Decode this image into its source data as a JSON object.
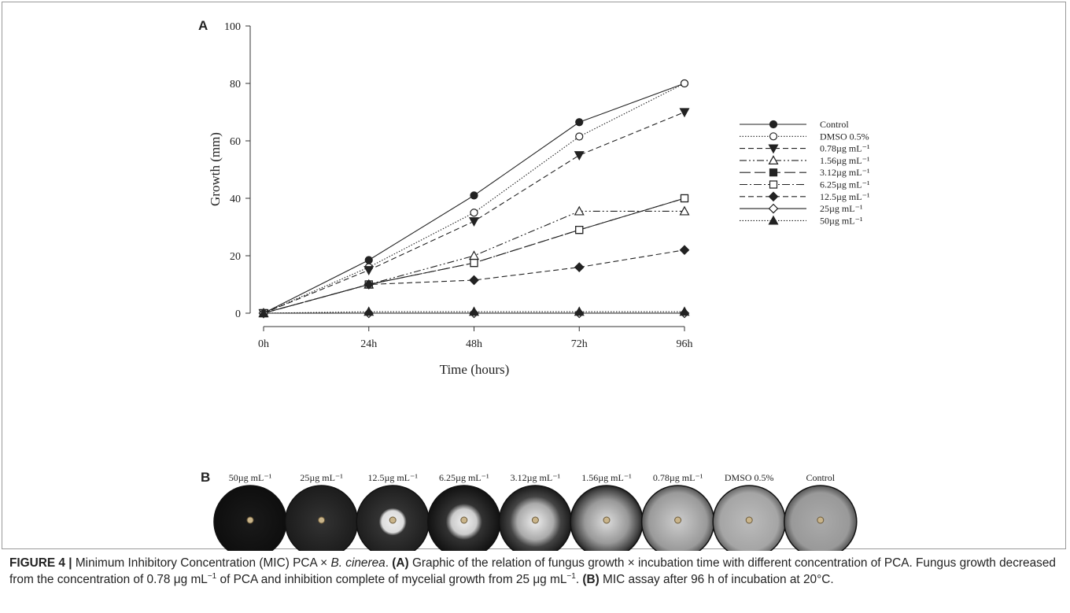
{
  "chart_data": {
    "type": "line",
    "panel_label": "A",
    "x_label": "Time (hours)",
    "y_label": "Growth (mm)",
    "categories": [
      "0h",
      "24h",
      "48h",
      "72h",
      "96h"
    ],
    "ylim": [
      0,
      100
    ],
    "yticks": [
      0,
      20,
      40,
      60,
      80,
      100
    ],
    "series": [
      {
        "name": "Control",
        "color": "#222222",
        "marker": "circle",
        "filled": true,
        "dash": "solid",
        "values": [
          0,
          18.5,
          41,
          66.5,
          80
        ]
      },
      {
        "name": "DMSO 0.5%",
        "color": "#222222",
        "marker": "circle",
        "filled": false,
        "dash": "dotted",
        "values": [
          0,
          16,
          35,
          61.5,
          80
        ]
      },
      {
        "name": "0.78µg mL⁻¹",
        "color": "#222222",
        "marker": "triangle-down",
        "filled": true,
        "dash": "dashed",
        "values": [
          0,
          15,
          32,
          55,
          70
        ]
      },
      {
        "name": "1.56µg mL⁻¹",
        "color": "#222222",
        "marker": "triangle-up",
        "filled": false,
        "dash": "dashdotdot",
        "values": [
          0,
          10,
          20,
          35.5,
          35.5
        ]
      },
      {
        "name": "3.12µg mL⁻¹",
        "color": "#222222",
        "marker": "square",
        "filled": true,
        "dash": "longdash",
        "values": [
          0,
          10,
          17.5,
          29,
          40
        ]
      },
      {
        "name": "6.25µg mL⁻¹",
        "color": "#222222",
        "marker": "square",
        "filled": false,
        "dash": "dashdot",
        "values": [
          0,
          10,
          17.5,
          29,
          40
        ]
      },
      {
        "name": "12.5µg mL⁻¹",
        "color": "#222222",
        "marker": "diamond",
        "filled": true,
        "dash": "dashed",
        "values": [
          0,
          10,
          11.5,
          16,
          22
        ]
      },
      {
        "name": "25µg mL⁻¹",
        "color": "#222222",
        "marker": "diamond",
        "filled": false,
        "dash": "solid",
        "values": [
          0,
          0,
          0,
          0,
          0
        ]
      },
      {
        "name": "50µg mL⁻¹",
        "color": "#222222",
        "marker": "triangle-up",
        "filled": true,
        "dash": "dotted",
        "values": [
          0,
          0.5,
          0.5,
          0.5,
          0.5
        ]
      }
    ]
  },
  "panel_b": {
    "label": "B",
    "plates": [
      "50µg mL⁻¹",
      "25µg mL⁻¹",
      "12.5µg mL⁻¹",
      "6.25µg mL⁻¹",
      "3.12µg mL⁻¹",
      "1.56µg mL⁻¹",
      "0.78µg mL⁻¹",
      "DMSO 0.5%",
      "Control"
    ]
  },
  "caption": {
    "parts": [
      "FIGURE 4 |",
      " Minimum Inhibitory Concentration (MIC) PCA × ",
      "B. cinerea",
      ". ",
      "(A)",
      " Graphic of the relation of fungus growth × incubation time with different concentration of PCA. Fungus growth decreased from the concentration of 0.78 μg mL",
      "−1",
      " of PCA and inhibition complete of mycelial growth from 25 μg mL",
      "−1",
      ". ",
      "(B)",
      " MIC assay after 96 h of incubation at 20°C."
    ]
  }
}
